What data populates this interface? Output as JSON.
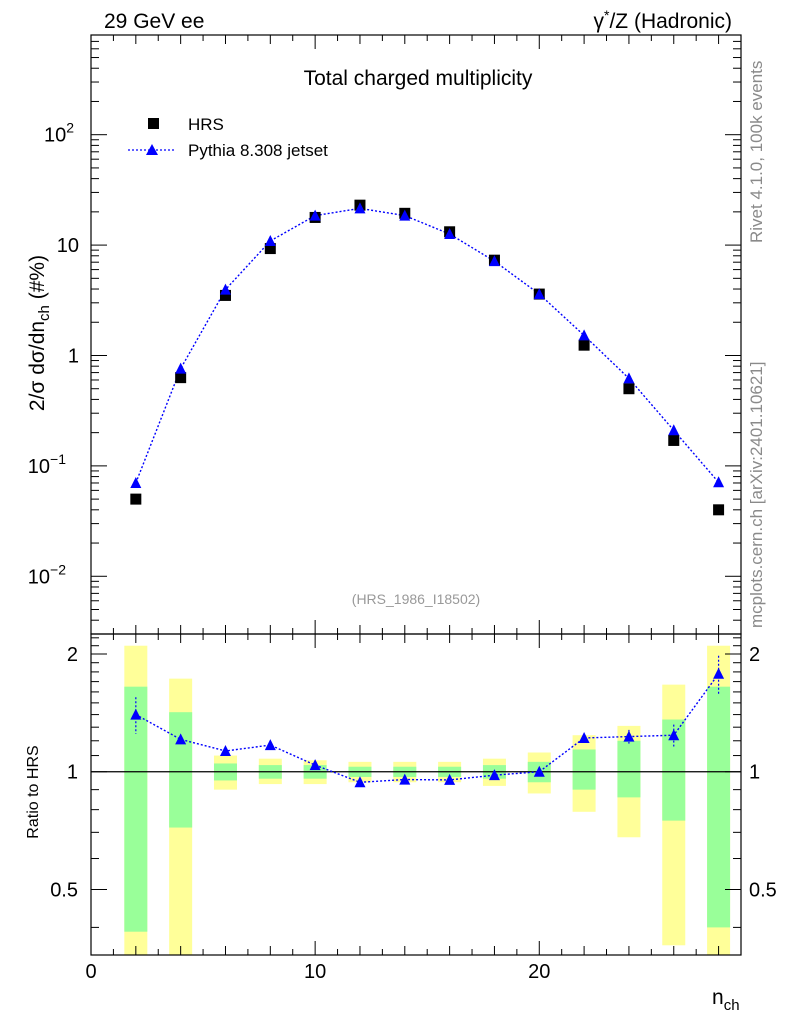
{
  "header": {
    "left": "29 GeV ee",
    "right_prefix": "γ",
    "right_sup": "*",
    "right_suffix": "/Z (Hadronic)"
  },
  "side_labels": {
    "rivet": "Rivet 4.1.0,  100k events",
    "mcplots": "mcplots.cern.ch [arXiv:2401.10621]"
  },
  "chart_data": [
    {
      "type": "scatter",
      "title": "Total charged multiplicity",
      "ylabel_parts": {
        "prefix": "2/σ   dσ/dn",
        "sub": "ch",
        "suffix": " (#%)"
      },
      "xlabel_parts": {
        "main": "n",
        "sub": "ch"
      },
      "yscale": "log",
      "ylim": [
        0.003,
        800
      ],
      "xlim": [
        0,
        29
      ],
      "analysis_tag": "(HRS_1986_I18502)",
      "y_ticks": [
        {
          "value": 0.01,
          "base": "10",
          "exp": "−2"
        },
        {
          "value": 0.1,
          "base": "10",
          "exp": "−1"
        },
        {
          "value": 1,
          "base": "1",
          "exp": ""
        },
        {
          "value": 10,
          "base": "10",
          "exp": ""
        },
        {
          "value": 100,
          "base": "10",
          "exp": "2"
        }
      ],
      "legend": {
        "position": "top-left",
        "entries": [
          {
            "name": "HRS",
            "marker": "square"
          },
          {
            "name": "Pythia 8.308 jetset",
            "marker": "triangle"
          }
        ]
      },
      "series": [
        {
          "name": "HRS",
          "color": "#000000",
          "x": [
            2,
            4,
            6,
            8,
            10,
            12,
            14,
            16,
            18,
            20,
            22,
            24,
            26,
            28
          ],
          "y": [
            0.05,
            0.63,
            3.5,
            9.3,
            17.8,
            23.0,
            19.4,
            13.2,
            7.3,
            3.6,
            1.24,
            0.5,
            0.17,
            0.04
          ]
        },
        {
          "name": "Pythia 8.308 jetset",
          "color": "#0000ff",
          "x": [
            2,
            4,
            6,
            8,
            10,
            12,
            14,
            16,
            18,
            20,
            22,
            24,
            26,
            28
          ],
          "y": [
            0.07,
            0.76,
            3.95,
            10.9,
            18.5,
            21.5,
            18.5,
            12.6,
            7.15,
            3.6,
            1.52,
            0.62,
            0.21,
            0.071
          ]
        }
      ]
    },
    {
      "type": "scatter",
      "ylabel": "Ratio to HRS",
      "xlim": [
        0,
        29
      ],
      "ylim": [
        0.34,
        2.25
      ],
      "x_ticks": [
        0,
        10,
        20
      ],
      "y_ticks": [
        0.5,
        1,
        2
      ],
      "reference_line": 1,
      "bands": [
        {
          "x": 2,
          "inner": [
            0.39,
            1.65
          ],
          "outer": [
            0.34,
            2.1
          ]
        },
        {
          "x": 4,
          "inner": [
            0.72,
            1.42
          ],
          "outer": [
            0.34,
            1.73
          ]
        },
        {
          "x": 6,
          "inner": [
            0.95,
            1.05
          ],
          "outer": [
            0.9,
            1.1
          ]
        },
        {
          "x": 8,
          "inner": [
            0.96,
            1.04
          ],
          "outer": [
            0.93,
            1.08
          ]
        },
        {
          "x": 10,
          "inner": [
            0.96,
            1.04
          ],
          "outer": [
            0.93,
            1.07
          ]
        },
        {
          "x": 12,
          "inner": [
            0.97,
            1.03
          ],
          "outer": [
            0.94,
            1.06
          ]
        },
        {
          "x": 14,
          "inner": [
            0.97,
            1.03
          ],
          "outer": [
            0.94,
            1.06
          ]
        },
        {
          "x": 16,
          "inner": [
            0.97,
            1.03
          ],
          "outer": [
            0.94,
            1.06
          ]
        },
        {
          "x": 18,
          "inner": [
            0.96,
            1.04
          ],
          "outer": [
            0.92,
            1.08
          ]
        },
        {
          "x": 20,
          "inner": [
            0.94,
            1.06
          ],
          "outer": [
            0.88,
            1.12
          ]
        },
        {
          "x": 22,
          "inner": [
            0.9,
            1.14
          ],
          "outer": [
            0.79,
            1.24
          ]
        },
        {
          "x": 24,
          "inner": [
            0.86,
            1.2
          ],
          "outer": [
            0.68,
            1.31
          ]
        },
        {
          "x": 26,
          "inner": [
            0.75,
            1.36
          ],
          "outer": [
            0.36,
            1.67
          ]
        },
        {
          "x": 28,
          "inner": [
            0.4,
            1.65
          ],
          "outer": [
            0.34,
            2.1
          ]
        }
      ],
      "series": [
        {
          "name": "Pythia 8.308 jetset",
          "color": "#0000ff",
          "x": [
            2,
            4,
            6,
            8,
            10,
            12,
            14,
            16,
            18,
            20,
            22,
            24,
            26,
            28
          ],
          "y": [
            1.4,
            1.21,
            1.13,
            1.17,
            1.04,
            0.94,
            0.955,
            0.953,
            0.98,
            1.0,
            1.22,
            1.23,
            1.24,
            1.78
          ],
          "err": [
            0.15,
            0.03,
            0.02,
            0.01,
            0.01,
            0.01,
            0.01,
            0.01,
            0.01,
            0.02,
            0.03,
            0.05,
            0.08,
            0.2
          ]
        }
      ]
    }
  ]
}
